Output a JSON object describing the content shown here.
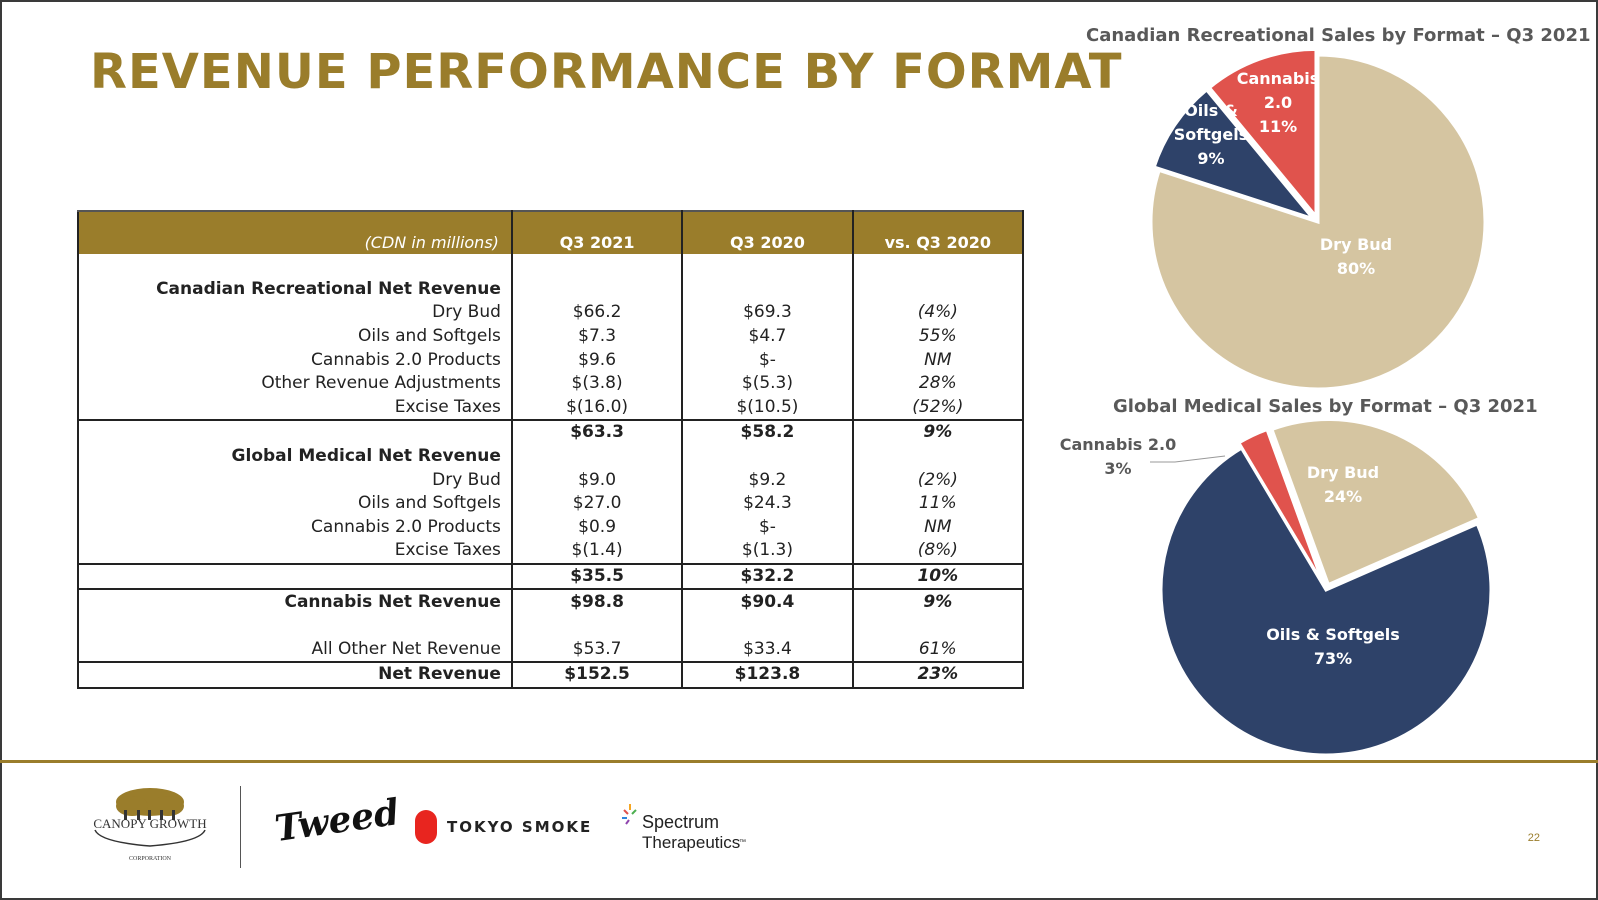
{
  "slide": {
    "title": "REVENUE PERFORMANCE BY FORMAT",
    "page_number": "22",
    "accent_color": "#9a7d2b"
  },
  "table": {
    "headers": [
      "(CDN in millions)",
      "Q3 2021",
      "Q3 2020",
      "vs. Q3 2020"
    ],
    "rows": [
      {
        "label": "",
        "q3_2021": "",
        "q3_2020": "",
        "vs": "",
        "bold": false
      },
      {
        "label": "Canadian Recreational Net Revenue",
        "q3_2021": "",
        "q3_2020": "",
        "vs": "",
        "bold": true
      },
      {
        "label": "Dry Bud",
        "q3_2021": "$66.2",
        "q3_2020": "$69.3",
        "vs": "(4%)"
      },
      {
        "label": "Oils and Softgels",
        "q3_2021": "$7.3",
        "q3_2020": "$4.7",
        "vs": "55%"
      },
      {
        "label": "Cannabis 2.0 Products",
        "q3_2021": "$9.6",
        "q3_2020": "$-",
        "vs": "NM"
      },
      {
        "label": "Other Revenue Adjustments",
        "q3_2021": "$(3.8)",
        "q3_2020": "$(5.3)",
        "vs": "28%"
      },
      {
        "label": "Excise Taxes",
        "q3_2021": "$(16.0)",
        "q3_2020": "$(10.5)",
        "vs": "(52%)"
      },
      {
        "label": "",
        "q3_2021": "$63.3",
        "q3_2020": "$58.2",
        "vs": "9%",
        "bold": true,
        "top": true
      },
      {
        "label": "Global Medical Net Revenue",
        "q3_2021": "",
        "q3_2020": "",
        "vs": "",
        "bold": true
      },
      {
        "label": "Dry Bud",
        "q3_2021": "$9.0",
        "q3_2020": "$9.2",
        "vs": "(2%)"
      },
      {
        "label": "Oils and Softgels",
        "q3_2021": "$27.0",
        "q3_2020": "$24.3",
        "vs": "11%"
      },
      {
        "label": "Cannabis 2.0 Products",
        "q3_2021": "$0.9",
        "q3_2020": "$-",
        "vs": "NM"
      },
      {
        "label": "Excise Taxes",
        "q3_2021": "$(1.4)",
        "q3_2020": "$(1.3)",
        "vs": "(8%)"
      },
      {
        "label": "",
        "q3_2021": "$35.5",
        "q3_2020": "$32.2",
        "vs": "10%",
        "bold": true,
        "top": true
      },
      {
        "label": "Cannabis Net Revenue",
        "q3_2021": "$98.8",
        "q3_2020": "$90.4",
        "vs": "9%",
        "bold": true,
        "top": true
      },
      {
        "label": "",
        "q3_2021": "",
        "q3_2020": "",
        "vs": ""
      },
      {
        "label": "All Other Net Revenue",
        "q3_2021": "$53.7",
        "q3_2020": "$33.4",
        "vs": "61%"
      },
      {
        "label": "Net Revenue",
        "q3_2021": "$152.5",
        "q3_2020": "$123.8",
        "vs": "23%",
        "bold": true,
        "top": true,
        "last": true
      }
    ]
  },
  "chart_data": [
    {
      "type": "pie",
      "title": "Canadian Recreational Sales by Format – Q3 2021",
      "slices": [
        {
          "label": "Dry Bud",
          "value": 80,
          "display": "80%",
          "color": "#d5c5a1",
          "label_lines": [
            "Dry Bud",
            "80%"
          ]
        },
        {
          "label": "Oils & Softgels",
          "value": 9,
          "display": "9%",
          "color": "#2e4269",
          "label_lines": [
            "Oils &",
            "Softgels",
            "9%"
          ]
        },
        {
          "label": "Cannabis 2.0",
          "value": 11,
          "display": "11%",
          "color": "#e0534d",
          "label_lines": [
            "Cannabis",
            "2.0",
            "11%"
          ]
        }
      ]
    },
    {
      "type": "pie",
      "title": "Global Medical Sales by Format – Q3 2021",
      "slices": [
        {
          "label": "Dry Bud",
          "value": 24,
          "display": "24%",
          "color": "#d5c5a1",
          "label_lines": [
            "Dry Bud",
            "24%"
          ]
        },
        {
          "label": "Oils & Softgels",
          "value": 73,
          "display": "73%",
          "color": "#2e4269",
          "label_lines": [
            "Oils & Softgels",
            "73%"
          ]
        },
        {
          "label": "Cannabis 2.0",
          "value": 3,
          "display": "3%",
          "color": "#e0534d",
          "label_lines": [
            "Cannabis 2.0",
            "3%"
          ]
        }
      ]
    }
  ],
  "logos": {
    "canopy": {
      "name": "CANOPY GROWTH",
      "sub": "CORPORATION"
    },
    "tweed": "Tweed",
    "tokyo_smoke": "TOKYO SMOKE",
    "spectrum": {
      "line1": "Spectrum",
      "line2": "Therapeutics",
      "tm": "™"
    }
  }
}
